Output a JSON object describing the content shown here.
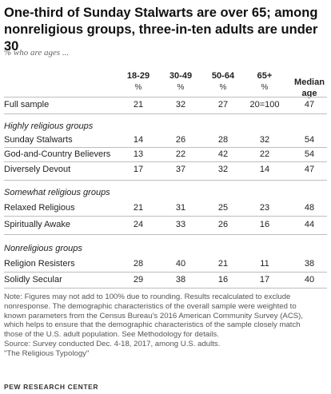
{
  "title_line1": "One-third of Sunday Stalwarts are over 65; among",
  "title_line2": "nonreligious groups, three-in-ten adults are under 30",
  "subtitle": "% who are ages ...",
  "columns": [
    {
      "label": "18-29",
      "unit": "%"
    },
    {
      "label": "30-49",
      "unit": "%"
    },
    {
      "label": "50-64",
      "unit": "%"
    },
    {
      "label": "65+",
      "unit": "%"
    }
  ],
  "median_header_line1": "Median",
  "median_header_line2": "age",
  "chart_data": {
    "type": "table",
    "title": "One-third of Sunday Stalwarts are over 65; among nonreligious groups, three-in-ten adults are under 30",
    "subtitle": "% who are ages ...",
    "column_headers": [
      "18-29",
      "30-49",
      "50-64",
      "65+",
      "Median age"
    ],
    "rows": [
      {
        "group": "",
        "label": "Full sample",
        "values": [
          "21",
          "32",
          "27",
          "20=100",
          "47"
        ]
      },
      {
        "group": "Highly religious groups",
        "label": "Sunday Stalwarts",
        "values": [
          "14",
          "26",
          "28",
          "32",
          "54"
        ]
      },
      {
        "group": "Highly religious groups",
        "label": "God-and-Country Believers",
        "values": [
          "13",
          "22",
          "42",
          "22",
          "54"
        ]
      },
      {
        "group": "Highly religious groups",
        "label": "Diversely Devout",
        "values": [
          "17",
          "37",
          "32",
          "14",
          "47"
        ]
      },
      {
        "group": "Somewhat religious groups",
        "label": "Relaxed Religious",
        "values": [
          "21",
          "31",
          "25",
          "23",
          "48"
        ]
      },
      {
        "group": "Somewhat religious groups",
        "label": "Spiritually Awake",
        "values": [
          "24",
          "33",
          "26",
          "16",
          "44"
        ]
      },
      {
        "group": "Nonreligious groups",
        "label": "Religion Resisters",
        "values": [
          "28",
          "40",
          "21",
          "11",
          "38"
        ]
      },
      {
        "group": "Nonreligious groups",
        "label": "Solidly Secular",
        "values": [
          "29",
          "38",
          "16",
          "17",
          "40"
        ]
      }
    ]
  },
  "groups": {
    "highly": "Highly religious groups",
    "somewhat": "Somewhat religious groups",
    "nonreligious": "Nonreligious groups"
  },
  "notes": [
    "Note: Figures may not add to 100% due to rounding. Results recalculated to exclude",
    "nonresponse. The demographic characteristics of the overall sample were weighted to",
    "known parameters from the Census Bureau's 2016 American Community Survey (ACS),",
    "which helps to ensure that the demographic characteristics of the sample closely match",
    "those of the U.S. adult population. See Methodology for details.",
    "Source: Survey conducted Dec. 4-18, 2017, among U.S. adults.",
    "\"The Religious Typology\""
  ],
  "brand": "PEW RESEARCH CENTER"
}
